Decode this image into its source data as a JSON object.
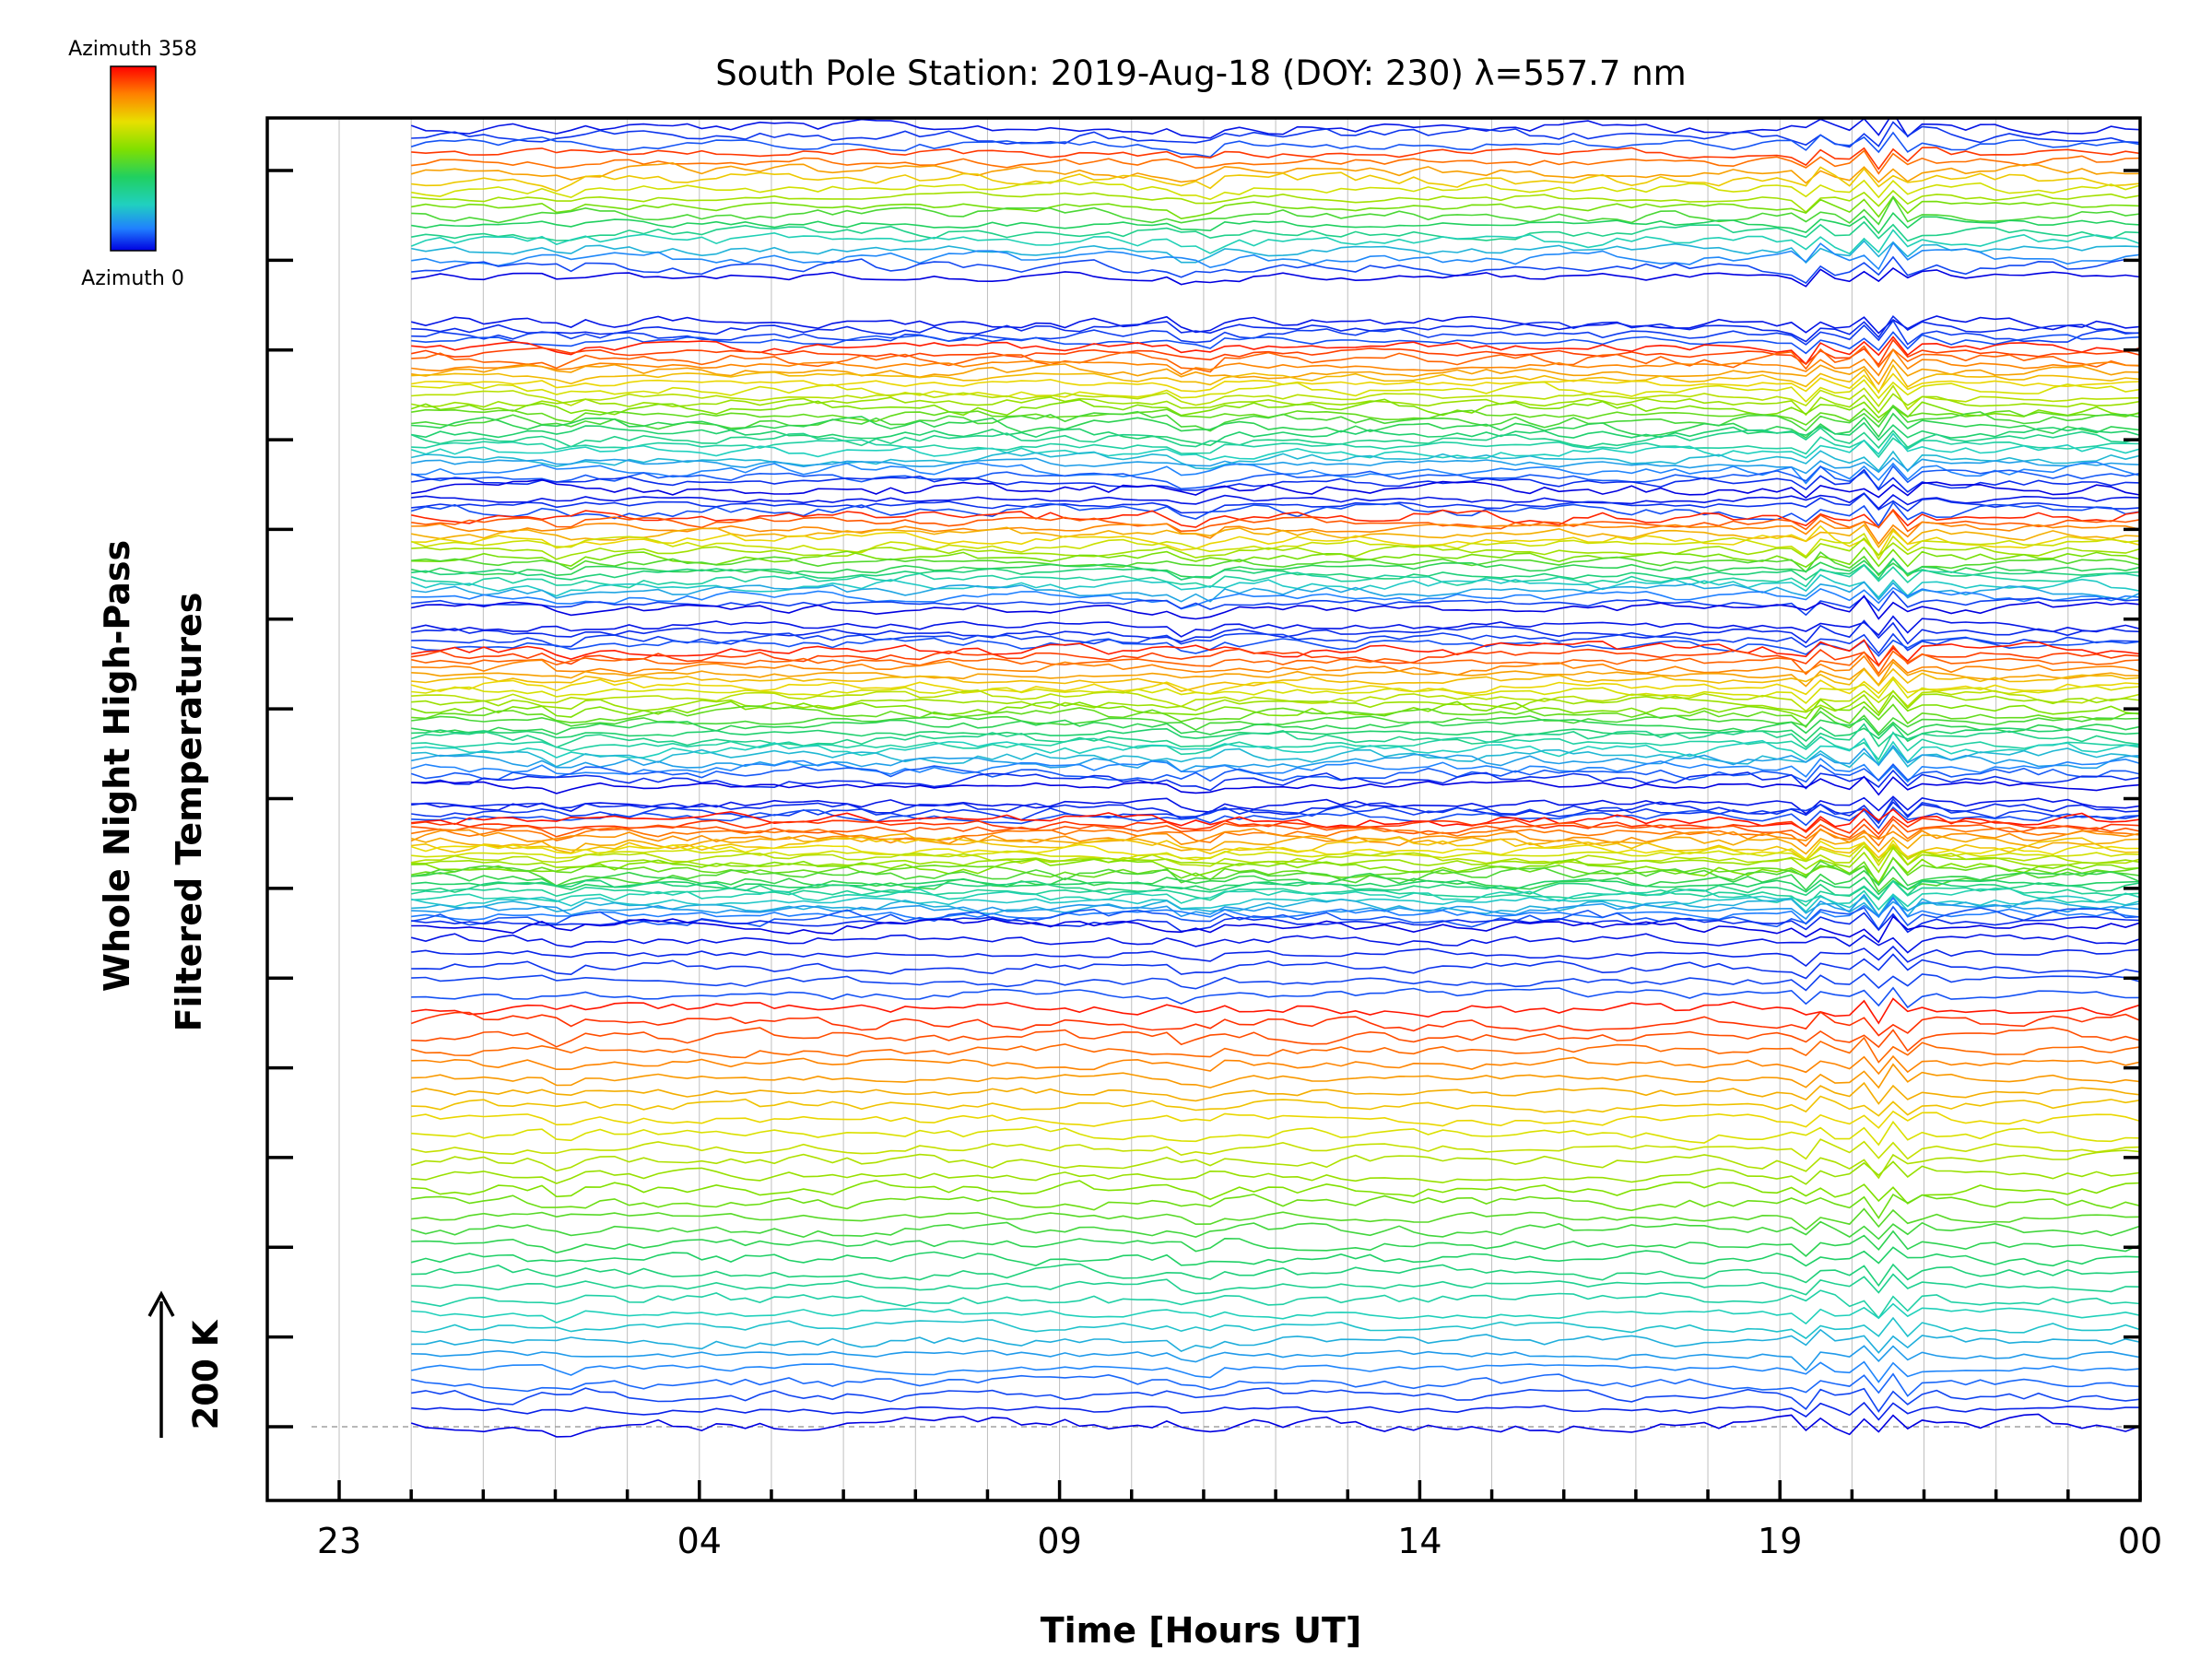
{
  "chart_data": {
    "type": "line",
    "title": "South Pole Station: 2019-Aug-18 (DOY: 230) λ=557.7 nm",
    "xlabel": "Time [Hours UT]",
    "ylabel_line1": "Whole Night High-Pass",
    "ylabel_line2": "Filtered Temperatures",
    "x_tick_labels": [
      "23",
      "04",
      "09",
      "14",
      "19",
      "00"
    ],
    "x_tick_hours": [
      0,
      5,
      10,
      15,
      20,
      25
    ],
    "xlim_hours": [
      -1,
      25.0
    ],
    "data_start_hour": 1.0,
    "data_end_hour": 25.0,
    "sample_count": 120,
    "scale_label": "200 K",
    "colorbar": {
      "top_label": "Azimuth 358",
      "bottom_label": "Azimuth 0",
      "azimuth_min": 0,
      "azimuth_max": 358,
      "colors": [
        "#ff0000",
        "#ff8000",
        "#e8e000",
        "#80e000",
        "#20d060",
        "#20d0c0",
        "#2080ff",
        "#0000e0"
      ]
    },
    "y_ticks_count": 15,
    "group_count": 6,
    "azimuth_traces_per_group": [
      18,
      28,
      20,
      28,
      30,
      36
    ],
    "base_colors": {
      "axis": "#000000",
      "grid": "#bfbfbf",
      "zero_dash": "#a0a0a0"
    }
  }
}
